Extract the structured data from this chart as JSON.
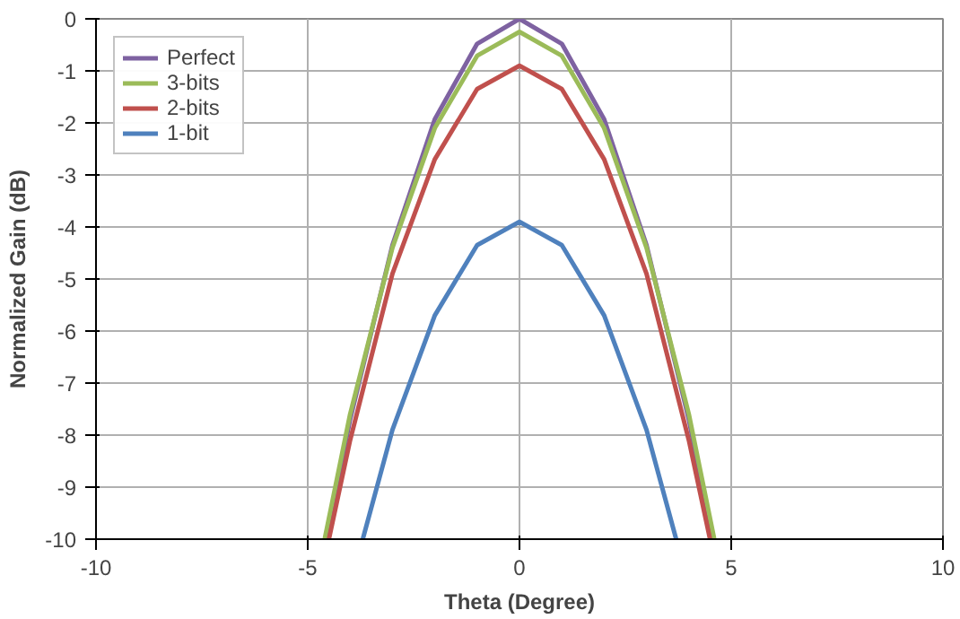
{
  "chart_data": {
    "type": "line",
    "xlabel": "Theta (Degree)",
    "ylabel": "Normalized Gain (dB)",
    "xlim": [
      -10,
      10
    ],
    "ylim": [
      -10,
      0
    ],
    "xticks": [
      -10,
      -5,
      0,
      5,
      10
    ],
    "yticks": [
      -10,
      -9,
      -8,
      -7,
      -6,
      -5,
      -4,
      -3,
      -2,
      -1,
      0
    ],
    "grid": true,
    "legend": "top left",
    "marker": "none",
    "line_style": "solid",
    "series": [
      {
        "name": "Perfect",
        "color": "#7e62a1",
        "x": [
          -4.55,
          -4,
          -3,
          -2,
          -1,
          0,
          1,
          2,
          3,
          4,
          4.55
        ],
        "values": [
          -10,
          -7.7,
          -4.35,
          -1.93,
          -0.48,
          0,
          -0.48,
          -1.93,
          -4.35,
          -7.7,
          -10
        ]
      },
      {
        "name": "3-bits",
        "color": "#9bbb59",
        "x": [
          -4.6,
          -4,
          -3,
          -2,
          -1,
          0,
          1,
          2,
          3,
          4,
          4.6
        ],
        "values": [
          -10,
          -7.6,
          -4.4,
          -2.1,
          -0.71,
          -0.25,
          -0.71,
          -2.1,
          -4.4,
          -7.6,
          -10
        ]
      },
      {
        "name": "2-bits",
        "color": "#c0504d",
        "x": [
          -4.5,
          -4,
          -3,
          -2,
          -1,
          0,
          1,
          2,
          3,
          4,
          4.5
        ],
        "values": [
          -10,
          -8.1,
          -4.9,
          -2.7,
          -1.35,
          -0.9,
          -1.35,
          -2.7,
          -4.9,
          -8.1,
          -10
        ]
      },
      {
        "name": "1-bit",
        "color": "#4f81bd",
        "x": [
          -3.7,
          -3,
          -2,
          -1,
          0,
          1,
          2,
          3,
          3.7
        ],
        "values": [
          -10,
          -7.9,
          -5.7,
          -4.35,
          -3.9,
          -4.35,
          -5.7,
          -7.9,
          -10
        ]
      }
    ]
  }
}
